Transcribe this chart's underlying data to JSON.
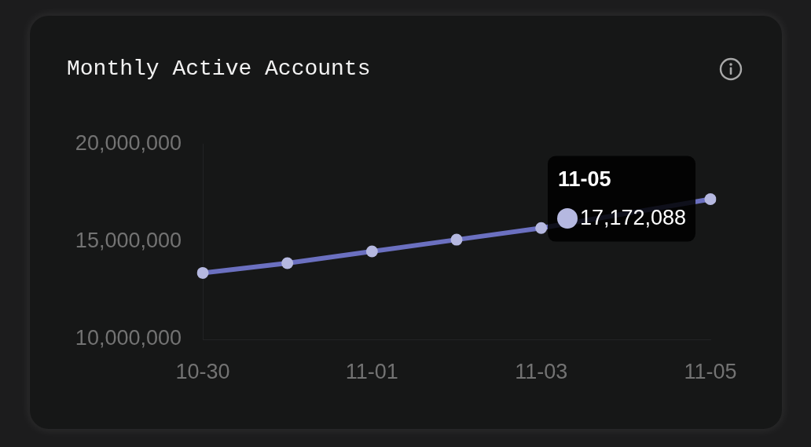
{
  "chart_data": {
    "type": "line",
    "title": "Monthly Active Accounts",
    "categories": [
      "10-30",
      null,
      "11-01",
      null,
      "11-03",
      null,
      "11-05"
    ],
    "values": [
      13400000,
      13900000,
      14500000,
      15100000,
      15700000,
      null,
      17172088
    ],
    "color": "#6b70c0",
    "value_labels": [
      null,
      null,
      null,
      null,
      null,
      null,
      "17,172,088"
    ],
    "annotations": [
      "11-05"
    ],
    "ylim": [
      10000000,
      20000000
    ],
    "yticks": [
      {
        "value": 10000000,
        "label": "10,000,000"
      },
      {
        "value": 15000000,
        "label": "15,000,000"
      },
      {
        "value": 20000000,
        "label": "20,000,000"
      }
    ],
    "grid": false,
    "legend": false,
    "marker": "circle"
  }
}
